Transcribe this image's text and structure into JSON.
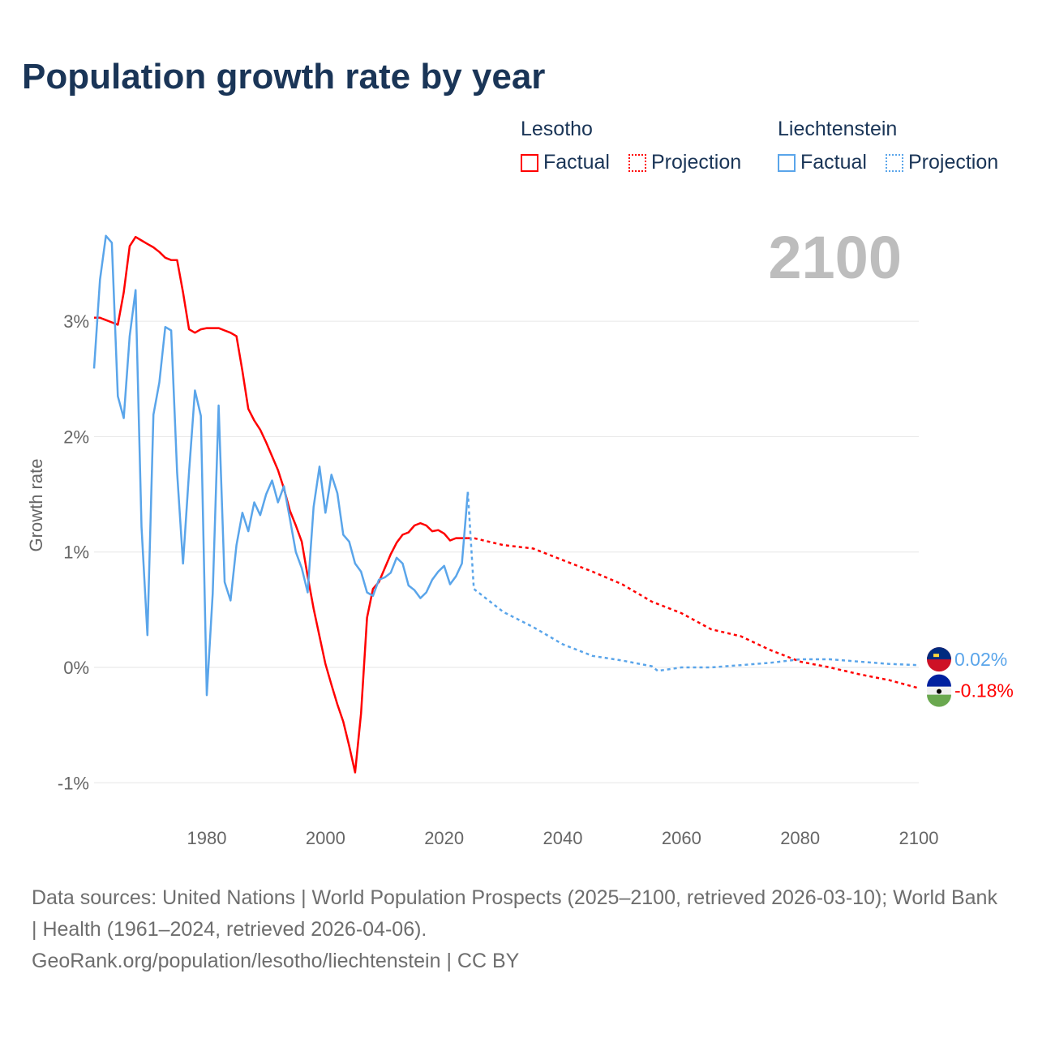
{
  "title": "Population growth rate by year",
  "legend": {
    "groups": [
      {
        "name": "Lesotho",
        "factual": "Factual",
        "projection": "Projection",
        "color": "#ff0000"
      },
      {
        "name": "Liechtenstein",
        "factual": "Factual",
        "projection": "Projection",
        "color": "#5aa5ea"
      }
    ]
  },
  "current_year": "2100",
  "footer": {
    "sources": "Data sources: United Nations | World Population Prospects (2025–2100, retrieved 2026-03-10); World Bank | Health (1961–2024, retrieved 2026-04-06).",
    "credit": "GeoRank.org/population/lesotho/liechtenstein | CC BY"
  },
  "chart_data": {
    "type": "line",
    "title": "Population growth rate by year",
    "xlabel": "",
    "ylabel": "Growth rate",
    "xlim": [
      1961,
      2100
    ],
    "ylim": [
      -1.3,
      3.9
    ],
    "x_ticks": [
      1980,
      2000,
      2020,
      2040,
      2060,
      2080,
      2100
    ],
    "x_tick_labels": [
      "1980",
      "2000",
      "2020",
      "2040",
      "2060",
      "2080",
      "2100"
    ],
    "y_ticks": [
      -1,
      0,
      1,
      2,
      3
    ],
    "y_tick_labels": [
      "-1%",
      "0%",
      "1%",
      "2%",
      "3%"
    ],
    "grid": true,
    "legend_position": "top-right",
    "series": [
      {
        "name": "Lesotho",
        "color": "#ff0000",
        "end_label": "-0.18%",
        "factual": {
          "x": [
            1961,
            1962,
            1963,
            1964,
            1965,
            1966,
            1967,
            1968,
            1969,
            1970,
            1971,
            1972,
            1973,
            1974,
            1975,
            1976,
            1977,
            1978,
            1979,
            1980,
            1981,
            1982,
            1983,
            1984,
            1985,
            1986,
            1987,
            1988,
            1989,
            1990,
            1991,
            1992,
            1993,
            1994,
            1995,
            1996,
            1997,
            1998,
            1999,
            2000,
            2001,
            2002,
            2003,
            2004,
            2005,
            2006,
            2007,
            2008,
            2009,
            2010,
            2011,
            2012,
            2013,
            2014,
            2015,
            2016,
            2017,
            2018,
            2019,
            2020,
            2021,
            2022,
            2023,
            2024
          ],
          "y": [
            3.03,
            3.03,
            3.01,
            2.99,
            2.97,
            3.25,
            3.65,
            3.73,
            3.7,
            3.67,
            3.64,
            3.6,
            3.55,
            3.53,
            3.53,
            3.25,
            2.93,
            2.9,
            2.93,
            2.94,
            2.94,
            2.94,
            2.92,
            2.9,
            2.87,
            2.57,
            2.24,
            2.14,
            2.06,
            1.95,
            1.83,
            1.71,
            1.55,
            1.36,
            1.23,
            1.09,
            0.79,
            0.51,
            0.27,
            0.03,
            -0.15,
            -0.32,
            -0.47,
            -0.68,
            -0.91,
            -0.4,
            0.43,
            0.68,
            0.74,
            0.86,
            0.98,
            1.08,
            1.15,
            1.17,
            1.23,
            1.25,
            1.23,
            1.18,
            1.19,
            1.16,
            1.1,
            1.12,
            1.12,
            1.12
          ]
        },
        "projection": {
          "x": [
            2024,
            2025,
            2030,
            2035,
            2040,
            2045,
            2050,
            2055,
            2060,
            2065,
            2070,
            2075,
            2080,
            2085,
            2090,
            2095,
            2100
          ],
          "y": [
            1.12,
            1.12,
            1.06,
            1.03,
            0.93,
            0.83,
            0.72,
            0.57,
            0.47,
            0.33,
            0.27,
            0.15,
            0.05,
            0.0,
            -0.06,
            -0.11,
            -0.18
          ]
        }
      },
      {
        "name": "Liechtenstein",
        "color": "#5aa5ea",
        "end_label": "0.02%",
        "factual": {
          "x": [
            1961,
            1962,
            1963,
            1964,
            1965,
            1966,
            1967,
            1968,
            1969,
            1970,
            1971,
            1972,
            1973,
            1974,
            1975,
            1976,
            1977,
            1978,
            1979,
            1980,
            1981,
            1982,
            1983,
            1984,
            1985,
            1986,
            1987,
            1988,
            1989,
            1990,
            1991,
            1992,
            1993,
            1994,
            1995,
            1996,
            1997,
            1998,
            1999,
            2000,
            2001,
            2002,
            2003,
            2004,
            2005,
            2006,
            2007,
            2008,
            2009,
            2010,
            2011,
            2012,
            2013,
            2014,
            2015,
            2016,
            2017,
            2018,
            2019,
            2020,
            2021,
            2022,
            2023,
            2024
          ],
          "y": [
            2.59,
            3.36,
            3.74,
            3.68,
            2.35,
            2.16,
            2.87,
            3.27,
            1.22,
            0.28,
            2.19,
            2.47,
            2.95,
            2.92,
            1.69,
            0.9,
            1.69,
            2.4,
            2.18,
            -0.24,
            0.64,
            2.27,
            0.74,
            0.58,
            1.06,
            1.34,
            1.18,
            1.43,
            1.32,
            1.5,
            1.62,
            1.43,
            1.57,
            1.29,
            1.0,
            0.86,
            0.65,
            1.39,
            1.74,
            1.34,
            1.67,
            1.51,
            1.15,
            1.09,
            0.9,
            0.83,
            0.65,
            0.62,
            0.76,
            0.78,
            0.82,
            0.95,
            0.9,
            0.71,
            0.67,
            0.6,
            0.65,
            0.76,
            0.83,
            0.88,
            0.72,
            0.79,
            0.9,
            1.52
          ]
        },
        "projection": {
          "x": [
            2024,
            2025,
            2030,
            2035,
            2040,
            2045,
            2050,
            2055,
            2056,
            2060,
            2065,
            2070,
            2075,
            2080,
            2085,
            2090,
            2095,
            2100
          ],
          "y": [
            1.52,
            0.68,
            0.48,
            0.35,
            0.2,
            0.1,
            0.06,
            0.01,
            -0.03,
            0.0,
            0.0,
            0.02,
            0.04,
            0.07,
            0.07,
            0.05,
            0.03,
            0.02
          ]
        }
      }
    ]
  }
}
